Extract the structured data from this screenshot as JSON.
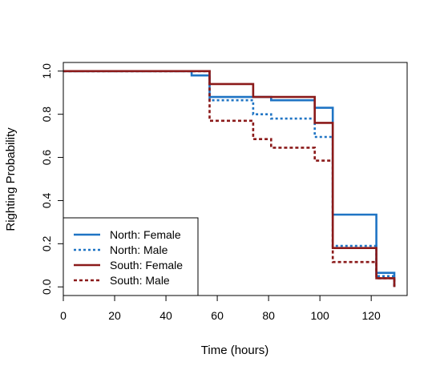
{
  "chart_data": {
    "type": "line",
    "step": true,
    "title": "",
    "xlabel": "Time (hours)",
    "ylabel": "Righting Probability",
    "xlim": [
      0,
      134
    ],
    "ylim": [
      -0.04,
      1.04
    ],
    "xticks": [
      0,
      20,
      40,
      60,
      80,
      100,
      120
    ],
    "yticks": [
      0.0,
      0.2,
      0.4,
      0.6,
      0.8,
      1.0
    ],
    "xtick_labels": [
      "0",
      "20",
      "40",
      "60",
      "80",
      "100",
      "120"
    ],
    "ytick_labels": [
      "0.0",
      "0.2",
      "0.4",
      "0.6",
      "0.8",
      "1.0"
    ],
    "grid": false,
    "legend_position": "bottom-left",
    "series": [
      {
        "name": "North: Female",
        "color": "#1f74c4",
        "dash": "solid",
        "points": [
          [
            0,
            1.0
          ],
          [
            50,
            1.0
          ],
          [
            50,
            0.98
          ],
          [
            57,
            0.98
          ],
          [
            57,
            0.88
          ],
          [
            81,
            0.88
          ],
          [
            81,
            0.865
          ],
          [
            98,
            0.865
          ],
          [
            98,
            0.83
          ],
          [
            105,
            0.83
          ],
          [
            105,
            0.335
          ],
          [
            122,
            0.335
          ],
          [
            122,
            0.065
          ],
          [
            129,
            0.065
          ],
          [
            129,
            0.0
          ]
        ]
      },
      {
        "name": "North: Male",
        "color": "#1f74c4",
        "dash": "dotted",
        "points": [
          [
            0,
            1.0
          ],
          [
            57,
            1.0
          ],
          [
            57,
            0.865
          ],
          [
            74,
            0.865
          ],
          [
            74,
            0.8
          ],
          [
            81,
            0.8
          ],
          [
            81,
            0.78
          ],
          [
            98,
            0.78
          ],
          [
            98,
            0.695
          ],
          [
            105,
            0.695
          ],
          [
            105,
            0.19
          ],
          [
            122,
            0.19
          ],
          [
            122,
            0.05
          ],
          [
            129,
            0.05
          ],
          [
            129,
            0.0
          ]
        ]
      },
      {
        "name": "South: Female",
        "color": "#8b1a1a",
        "dash": "solid",
        "points": [
          [
            0,
            1.0
          ],
          [
            57,
            1.0
          ],
          [
            57,
            0.94
          ],
          [
            74,
            0.94
          ],
          [
            74,
            0.88
          ],
          [
            98,
            0.88
          ],
          [
            98,
            0.76
          ],
          [
            105,
            0.76
          ],
          [
            105,
            0.18
          ],
          [
            122,
            0.18
          ],
          [
            122,
            0.04
          ],
          [
            129,
            0.04
          ],
          [
            129,
            0.0
          ]
        ]
      },
      {
        "name": "South: Male",
        "color": "#8b1a1a",
        "dash": "dashed",
        "points": [
          [
            0,
            1.0
          ],
          [
            57,
            1.0
          ],
          [
            57,
            0.77
          ],
          [
            74,
            0.77
          ],
          [
            74,
            0.685
          ],
          [
            81,
            0.685
          ],
          [
            81,
            0.645
          ],
          [
            98,
            0.645
          ],
          [
            98,
            0.585
          ],
          [
            105,
            0.585
          ],
          [
            105,
            0.115
          ],
          [
            122,
            0.115
          ],
          [
            122,
            0.04
          ],
          [
            129,
            0.04
          ],
          [
            129,
            0.0
          ]
        ]
      }
    ]
  }
}
